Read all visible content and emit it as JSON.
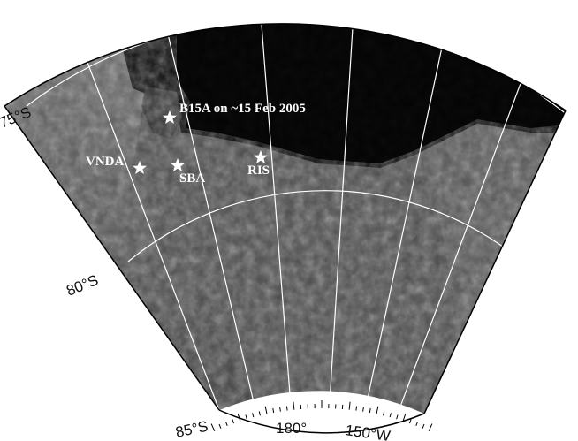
{
  "map": {
    "latitude_labels": [
      "75°S",
      "80°S",
      "85°S"
    ],
    "longitude_labels": [
      "180°",
      "150°W"
    ],
    "annotation": "B15A  on ~15 Feb 2005",
    "sites": [
      {
        "name": "B15A",
        "label": ""
      },
      {
        "name": "VNDA",
        "label": "VNDA"
      },
      {
        "name": "SBA",
        "label": "SBA"
      },
      {
        "name": "RIS",
        "label": "RIS"
      }
    ],
    "colors": {
      "ocean": "#050505",
      "ice_shelf": "#4a4a4a",
      "land": "#5a5a5a",
      "graticule": "#ffffff",
      "marker": "#ffffff"
    }
  }
}
